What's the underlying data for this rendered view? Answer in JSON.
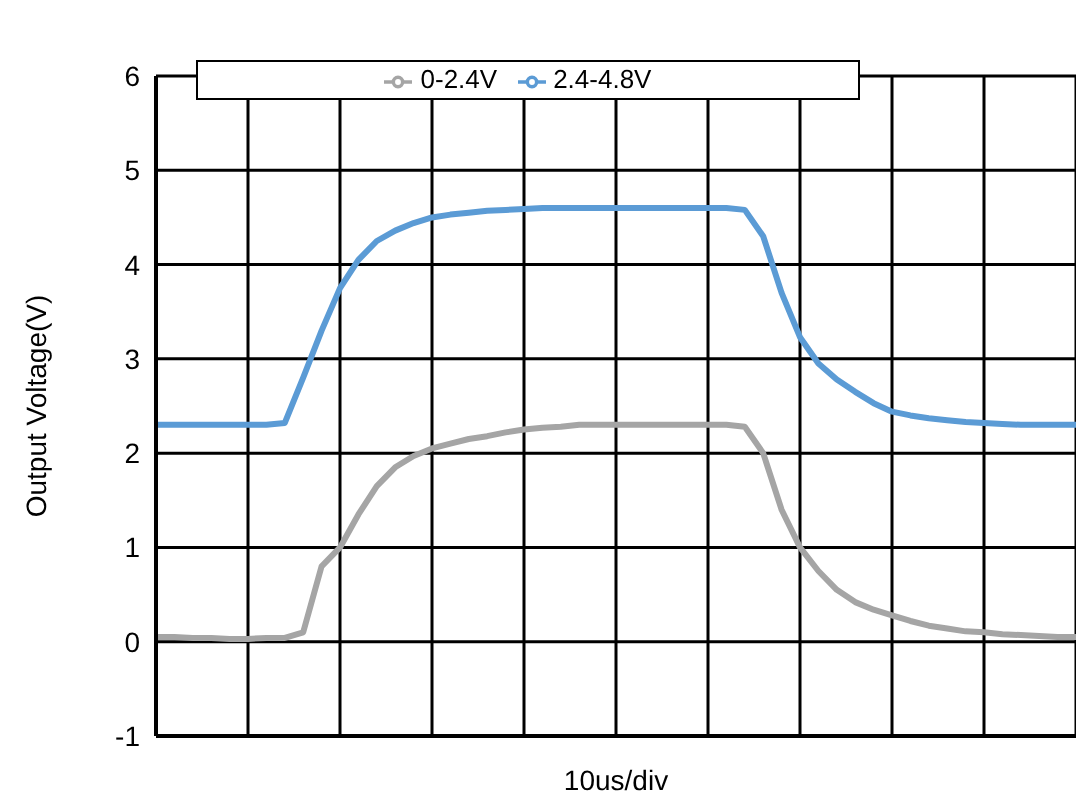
{
  "chart_data": {
    "type": "line",
    "xlabel": "10us/div",
    "ylabel": "Output Voltage(V)",
    "ylim": [
      -1,
      6
    ],
    "yticks": [
      -1,
      0,
      1,
      2,
      3,
      4,
      5,
      6
    ],
    "grid": true,
    "legend": "top",
    "marker": "none",
    "line_style": "solid",
    "categories": [
      null,
      null,
      null,
      null,
      null,
      null,
      null,
      null,
      null,
      null,
      null,
      null,
      null,
      null,
      null,
      null,
      null,
      null,
      null,
      null,
      null,
      null,
      null,
      null,
      null,
      null,
      null,
      null,
      null,
      null,
      null,
      null,
      null,
      null,
      null,
      null,
      null,
      null,
      null,
      null,
      null,
      null,
      null,
      null,
      null,
      null,
      null,
      null,
      null,
      null,
      null
    ],
    "series": [
      {
        "name": "0-2.4V",
        "color": "#a5a5a5",
        "values": [
          0.05,
          0.05,
          0.04,
          0.04,
          0.03,
          0.03,
          0.04,
          0.04,
          0.1,
          0.8,
          1.0,
          1.35,
          1.65,
          1.85,
          1.97,
          2.05,
          2.1,
          2.15,
          2.18,
          2.22,
          2.25,
          2.27,
          2.28,
          2.3,
          2.3,
          2.3,
          2.3,
          2.3,
          2.3,
          2.3,
          2.3,
          2.3,
          2.28,
          2.0,
          1.4,
          1.0,
          0.75,
          0.55,
          0.42,
          0.34,
          0.28,
          0.22,
          0.17,
          0.14,
          0.11,
          0.1,
          0.08,
          0.07,
          0.06,
          0.05,
          0.05
        ]
      },
      {
        "name": "2.4-4.8V",
        "color": "#5b9bd5",
        "values": [
          2.3,
          2.3,
          2.3,
          2.3,
          2.3,
          2.3,
          2.3,
          2.32,
          2.8,
          3.3,
          3.75,
          4.05,
          4.25,
          4.36,
          4.44,
          4.5,
          4.53,
          4.55,
          4.57,
          4.58,
          4.59,
          4.6,
          4.6,
          4.6,
          4.6,
          4.6,
          4.6,
          4.6,
          4.6,
          4.6,
          4.6,
          4.6,
          4.58,
          4.3,
          3.7,
          3.23,
          2.95,
          2.78,
          2.65,
          2.53,
          2.44,
          2.4,
          2.37,
          2.35,
          2.33,
          2.32,
          2.31,
          2.3,
          2.3,
          2.3,
          2.3
        ]
      }
    ]
  }
}
